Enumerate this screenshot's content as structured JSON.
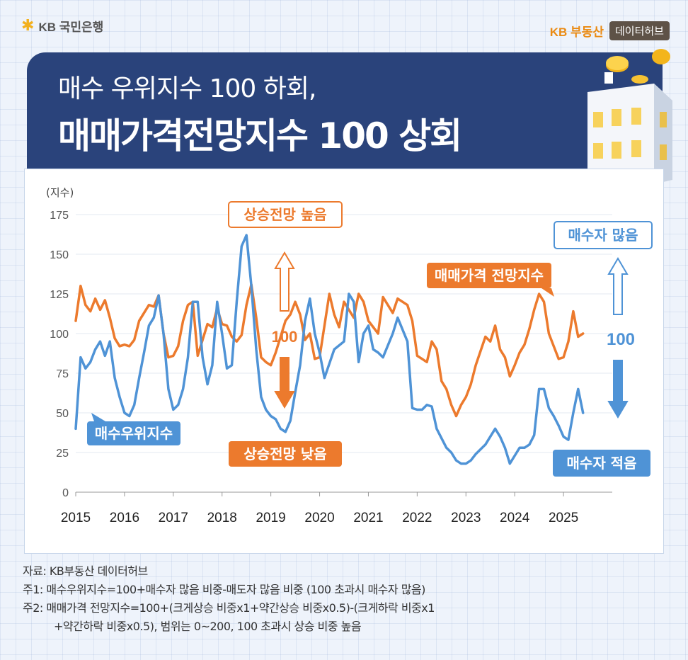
{
  "brand": {
    "left": "KB 국민은행",
    "right_kb": "KB 부동산",
    "right_badge": "데이터허브"
  },
  "headline": {
    "line1": "매수 우위지수 100 하회,",
    "line2": "매매가격전망지수 100 상회"
  },
  "icons": {
    "brand": "kb-star-icon",
    "illustration": "building-coins-icon",
    "up": "up-arrow-icon",
    "down": "down-arrow-icon"
  },
  "chart_data": {
    "type": "line",
    "ylabel": "(지수)",
    "ylim": [
      0,
      175
    ],
    "yticks": [
      0,
      25,
      50,
      75,
      100,
      125,
      150,
      175
    ],
    "xlim": [
      2015.0,
      2026.0
    ],
    "xticks": [
      "2015",
      "2016",
      "2017",
      "2018",
      "2019",
      "2020",
      "2021",
      "2022",
      "2023",
      "2024",
      "2025"
    ],
    "grid": "horizontal",
    "reference_line": 100,
    "series": [
      {
        "name": "매매가격 전망지수",
        "color": "#ec7a2d",
        "x": [
          2015.0,
          2015.1,
          2015.2,
          2015.3,
          2015.4,
          2015.5,
          2015.6,
          2015.7,
          2015.8,
          2015.9,
          2016.0,
          2016.1,
          2016.2,
          2016.3,
          2016.5,
          2016.6,
          2016.7,
          2016.8,
          2016.9,
          2017.0,
          2017.1,
          2017.2,
          2017.3,
          2017.4,
          2017.5,
          2017.6,
          2017.7,
          2017.8,
          2017.9,
          2018.0,
          2018.1,
          2018.2,
          2018.3,
          2018.4,
          2018.5,
          2018.6,
          2018.7,
          2018.8,
          2018.9,
          2019.0,
          2019.1,
          2019.2,
          2019.3,
          2019.4,
          2019.5,
          2019.6,
          2019.7,
          2019.8,
          2019.9,
          2020.0,
          2020.2,
          2020.3,
          2020.4,
          2020.5,
          2020.6,
          2020.7,
          2020.8,
          2020.9,
          2021.0,
          2021.2,
          2021.3,
          2021.5,
          2021.6,
          2021.8,
          2021.9,
          2022.0,
          2022.1,
          2022.2,
          2022.3,
          2022.4,
          2022.5,
          2022.6,
          2022.7,
          2022.8,
          2022.9,
          2023.0,
          2023.1,
          2023.2,
          2023.4,
          2023.5,
          2023.6,
          2023.7,
          2023.8,
          2023.9,
          2024.0,
          2024.1,
          2024.2,
          2024.3,
          2024.4,
          2024.5,
          2024.6,
          2024.7,
          2024.8,
          2024.9,
          2025.0,
          2025.1,
          2025.2,
          2025.3,
          2025.4
        ],
        "y": [
          108,
          130,
          118,
          114,
          122,
          115,
          121,
          110,
          97,
          92,
          93,
          92,
          96,
          108,
          118,
          117,
          124,
          100,
          85,
          86,
          92,
          108,
          118,
          120,
          86,
          96,
          106,
          104,
          116,
          106,
          105,
          98,
          95,
          99,
          118,
          131,
          110,
          85,
          82,
          80,
          88,
          98,
          108,
          112,
          120,
          112,
          96,
          100,
          84,
          85,
          125,
          112,
          104,
          120,
          115,
          110,
          125,
          120,
          108,
          100,
          123,
          113,
          122,
          118,
          108,
          86,
          84,
          82,
          95,
          90,
          70,
          65,
          55,
          48,
          55,
          60,
          68,
          80,
          98,
          95,
          105,
          90,
          85,
          73,
          80,
          88,
          93,
          103,
          115,
          125,
          120,
          100,
          92,
          84,
          85,
          95,
          114,
          98,
          100
        ],
        "label": "매매가격 전망지수"
      },
      {
        "name": "매수우위지수",
        "color": "#4f93d6",
        "x": [
          2015.0,
          2015.1,
          2015.2,
          2015.3,
          2015.4,
          2015.5,
          2015.6,
          2015.7,
          2015.8,
          2015.9,
          2016.0,
          2016.1,
          2016.2,
          2016.3,
          2016.4,
          2016.5,
          2016.6,
          2016.7,
          2016.8,
          2016.9,
          2017.0,
          2017.1,
          2017.2,
          2017.3,
          2017.4,
          2017.5,
          2017.6,
          2017.7,
          2017.8,
          2017.9,
          2018.0,
          2018.1,
          2018.2,
          2018.3,
          2018.4,
          2018.5,
          2018.6,
          2018.7,
          2018.8,
          2018.9,
          2019.0,
          2019.1,
          2019.2,
          2019.3,
          2019.4,
          2019.5,
          2019.6,
          2019.7,
          2019.8,
          2019.9,
          2020.0,
          2020.1,
          2020.3,
          2020.5,
          2020.6,
          2020.7,
          2020.8,
          2020.9,
          2021.0,
          2021.1,
          2021.2,
          2021.3,
          2021.5,
          2021.6,
          2021.8,
          2021.9,
          2022.0,
          2022.1,
          2022.2,
          2022.3,
          2022.4,
          2022.6,
          2022.7,
          2022.8,
          2022.9,
          2023.0,
          2023.1,
          2023.2,
          2023.3,
          2023.4,
          2023.5,
          2023.6,
          2023.7,
          2023.8,
          2023.9,
          2024.0,
          2024.1,
          2024.2,
          2024.3,
          2024.4,
          2024.5,
          2024.6,
          2024.7,
          2024.8,
          2024.9,
          2025.0,
          2025.1,
          2025.2,
          2025.3,
          2025.4
        ],
        "y": [
          40,
          85,
          78,
          82,
          90,
          95,
          86,
          95,
          72,
          60,
          50,
          48,
          55,
          72,
          88,
          105,
          110,
          124,
          100,
          65,
          52,
          55,
          65,
          85,
          120,
          120,
          85,
          68,
          80,
          120,
          100,
          78,
          80,
          120,
          155,
          162,
          130,
          90,
          60,
          52,
          48,
          46,
          40,
          38,
          45,
          63,
          80,
          108,
          122,
          100,
          88,
          72,
          90,
          95,
          125,
          120,
          82,
          100,
          105,
          90,
          88,
          85,
          100,
          110,
          95,
          53,
          52,
          52,
          55,
          54,
          40,
          28,
          25,
          20,
          18,
          18,
          20,
          24,
          27,
          30,
          35,
          40,
          35,
          28,
          18,
          23,
          28,
          28,
          30,
          36,
          65,
          65,
          53,
          48,
          42,
          35,
          33,
          50,
          65,
          50
        ],
        "label": "매수우위지수"
      }
    ],
    "annotations": {
      "up_price": "상승전망 높음",
      "down_price": "상승전망 낮음",
      "up_buyer": "매수자 많음",
      "down_buyer": "매수자 적음",
      "mark_left": "100",
      "mark_right": "100"
    }
  },
  "notes": [
    "자료: KB부동산 데이터허브",
    "주1:  매수우위지수=100+매수자 많음 비중-매도자 많음 비중 (100 초과시 매수자 많음)",
    "주2: 매매가격 전망지수=100+(크게상승 비중x1+약간상승 비중x0.5)-(크게하락 비중x1",
    "+약간하락 비중x0.5), 범위는 0~200, 100 초과시 상승 비중 높음"
  ]
}
